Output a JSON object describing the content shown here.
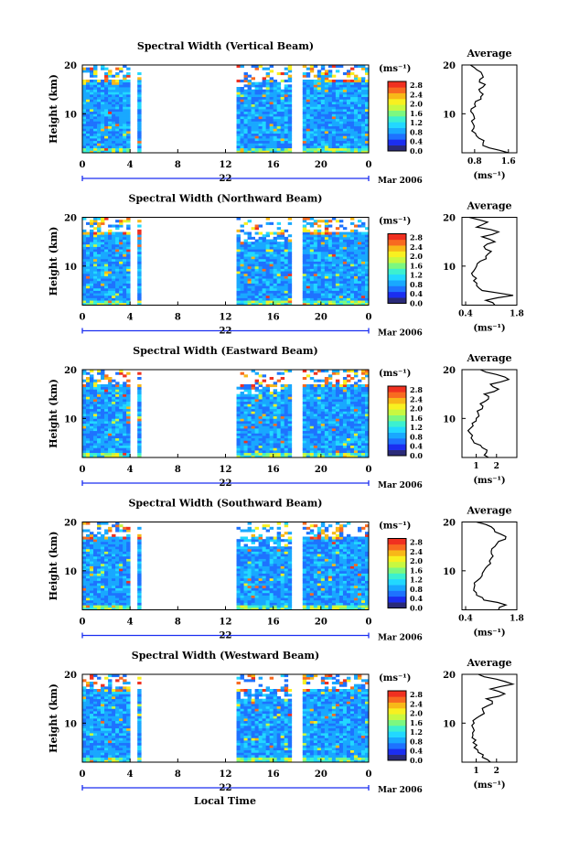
{
  "figure": {
    "xlabel": "Local Time",
    "date_label": "Mar 2006",
    "colorbar_units": "(ms⁻¹)",
    "avg_title": "Average",
    "avg_xlabel": "(ms⁻¹)",
    "colormap": [
      "#2a2a78",
      "#1b2ef0",
      "#1e72ff",
      "#19a8ff",
      "#22d8ff",
      "#3cf0d0",
      "#7cf880",
      "#c8f840",
      "#f8f020",
      "#f8b818",
      "#f86a20",
      "#f03020"
    ]
  },
  "chart_data": [
    {
      "type": "heatmap",
      "title": "Spectral Width (Vertical Beam)",
      "ylabel": "Height (km)",
      "xlim": [
        0,
        24
      ],
      "ylim": [
        2,
        20
      ],
      "x_ticks": [
        "0",
        "4",
        "8",
        "12",
        "16",
        "20",
        "0"
      ],
      "y_ticks": [
        "20",
        "10"
      ],
      "day_label": "22",
      "colorbar_ticks": [
        "2.8",
        "2.4",
        "2.0",
        "1.6",
        "1.2",
        "0.8",
        "0.4",
        "0.0"
      ],
      "data_gaps_hours": [
        [
          4.1,
          4.6
        ],
        [
          4.9,
          12.8
        ],
        [
          17.6,
          18.6
        ]
      ],
      "dominant_range": [
        0.4,
        1.2
      ],
      "average_profile": {
        "xlim": [
          0.5,
          1.8
        ],
        "x_ticks": [
          "0.8",
          "1.6"
        ],
        "height_km": [
          2,
          3,
          4,
          5,
          6,
          7,
          8,
          9,
          10,
          11,
          12,
          13,
          14,
          15,
          16,
          17,
          18,
          19,
          20
        ],
        "value": [
          1.6,
          1.15,
          1.0,
          0.9,
          0.82,
          0.78,
          0.76,
          0.8,
          0.76,
          0.72,
          0.8,
          0.95,
          1.0,
          0.9,
          1.05,
          0.92,
          0.98,
          0.85,
          0.7
        ]
      }
    },
    {
      "type": "heatmap",
      "title": "Spectral Width (Northward Beam)",
      "ylabel": "Height (km)",
      "xlim": [
        0,
        24
      ],
      "ylim": [
        2,
        20
      ],
      "x_ticks": [
        "0",
        "4",
        "8",
        "12",
        "16",
        "20",
        "0"
      ],
      "y_ticks": [
        "20",
        "10"
      ],
      "day_label": "22",
      "colorbar_ticks": [
        "2.8",
        "2.4",
        "2.0",
        "1.6",
        "1.2",
        "0.8",
        "0.4",
        "0.0"
      ],
      "data_gaps_hours": [
        [
          4.1,
          4.6
        ],
        [
          4.9,
          12.8
        ],
        [
          17.6,
          18.6
        ]
      ],
      "dominant_range": [
        0.4,
        1.2
      ],
      "average_profile": {
        "xlim": [
          0.3,
          1.8
        ],
        "x_ticks": [
          "0.4",
          "1.8"
        ],
        "height_km": [
          2,
          3,
          4,
          5,
          6,
          7,
          8,
          9,
          10,
          11,
          12,
          13,
          14,
          15,
          16,
          17,
          18,
          19,
          20
        ],
        "value": [
          1.2,
          0.95,
          1.7,
          0.85,
          0.7,
          0.62,
          0.6,
          0.62,
          0.7,
          0.8,
          0.95,
          1.1,
          0.9,
          1.2,
          0.85,
          1.3,
          0.7,
          1.0,
          0.5
        ]
      }
    },
    {
      "type": "heatmap",
      "title": "Spectral Width (Eastward Beam)",
      "ylabel": "Height (km)",
      "xlim": [
        0,
        24
      ],
      "ylim": [
        2,
        20
      ],
      "x_ticks": [
        "0",
        "4",
        "8",
        "12",
        "16",
        "20",
        "0"
      ],
      "y_ticks": [
        "20",
        "10"
      ],
      "day_label": "22",
      "colorbar_ticks": [
        "2.8",
        "2.4",
        "2.0",
        "1.6",
        "1.2",
        "0.8",
        "0.4",
        "0.0"
      ],
      "data_gaps_hours": [
        [
          4.1,
          4.6
        ],
        [
          4.9,
          12.8
        ],
        [
          17.6,
          18.6
        ]
      ],
      "dominant_range": [
        0.4,
        1.2
      ],
      "average_profile": {
        "xlim": [
          0.3,
          3.0
        ],
        "x_ticks": [
          "1",
          "2"
        ],
        "height_km": [
          2,
          3,
          4,
          5,
          6,
          7,
          8,
          9,
          10,
          11,
          12,
          13,
          14,
          15,
          16,
          17,
          18,
          19,
          20
        ],
        "value": [
          1.6,
          1.5,
          1.3,
          0.9,
          0.75,
          0.7,
          0.72,
          0.8,
          1.0,
          1.1,
          1.3,
          1.2,
          1.6,
          1.4,
          2.1,
          1.7,
          2.6,
          2.0,
          1.2
        ]
      }
    },
    {
      "type": "heatmap",
      "title": "Spectral Width (Southward Beam)",
      "ylabel": "Height (km)",
      "xlim": [
        0,
        24
      ],
      "ylim": [
        2,
        20
      ],
      "x_ticks": [
        "0",
        "4",
        "8",
        "12",
        "16",
        "20",
        "0"
      ],
      "y_ticks": [
        "20",
        "10"
      ],
      "day_label": "22",
      "colorbar_ticks": [
        "2.8",
        "2.4",
        "2.0",
        "1.6",
        "1.2",
        "0.8",
        "0.4",
        "0.0"
      ],
      "data_gaps_hours": [
        [
          4.1,
          4.6
        ],
        [
          4.9,
          12.8
        ],
        [
          17.6,
          18.6
        ]
      ],
      "dominant_range": [
        0.4,
        1.2
      ],
      "average_profile": {
        "xlim": [
          0.3,
          1.8
        ],
        "x_ticks": [
          "0.4",
          "1.8"
        ],
        "height_km": [
          2,
          3,
          4,
          5,
          6,
          7,
          8,
          9,
          10,
          11,
          12,
          13,
          14,
          15,
          16,
          17,
          18,
          19,
          20
        ],
        "value": [
          1.3,
          1.5,
          0.9,
          0.7,
          0.62,
          0.65,
          0.72,
          0.85,
          0.9,
          1.0,
          1.05,
          1.15,
          1.1,
          1.2,
          1.3,
          1.5,
          1.2,
          1.1,
          0.7
        ]
      }
    },
    {
      "type": "heatmap",
      "title": "Spectral Width (Westward Beam)",
      "ylabel": "Height (km)",
      "xlim": [
        0,
        24
      ],
      "ylim": [
        2,
        20
      ],
      "x_ticks": [
        "0",
        "4",
        "8",
        "12",
        "16",
        "20",
        "0"
      ],
      "y_ticks": [
        "20",
        "10"
      ],
      "day_label": "22",
      "colorbar_ticks": [
        "2.8",
        "2.4",
        "2.0",
        "1.6",
        "1.2",
        "0.8",
        "0.4",
        "0.0"
      ],
      "data_gaps_hours": [
        [
          4.1,
          4.6
        ],
        [
          4.9,
          12.8
        ],
        [
          17.6,
          18.6
        ]
      ],
      "dominant_range": [
        0.4,
        1.2
      ],
      "average_profile": {
        "xlim": [
          0.3,
          3.0
        ],
        "x_ticks": [
          "1",
          "2"
        ],
        "height_km": [
          2,
          3,
          4,
          5,
          6,
          7,
          8,
          9,
          10,
          11,
          12,
          13,
          14,
          15,
          16,
          17,
          18,
          19,
          20
        ],
        "value": [
          1.7,
          1.3,
          1.1,
          0.9,
          0.85,
          0.8,
          0.82,
          0.85,
          0.9,
          1.0,
          1.4,
          1.3,
          1.8,
          1.5,
          2.4,
          1.7,
          2.8,
          2.0,
          1.1
        ]
      }
    }
  ]
}
